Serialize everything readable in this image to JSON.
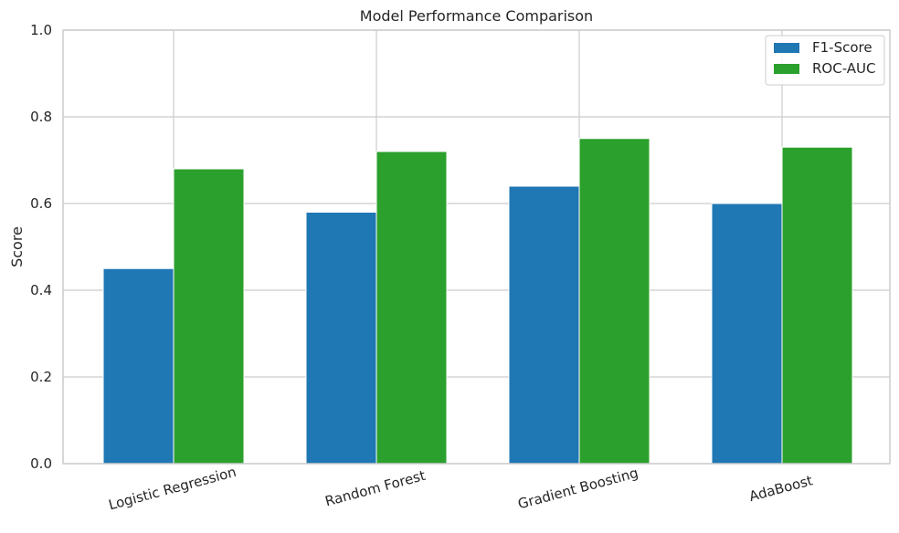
{
  "chart_data": {
    "type": "bar",
    "title": "Model Performance Comparison",
    "xlabel": "",
    "ylabel": "Score",
    "ylim": [
      0,
      1.0
    ],
    "yticks": [
      "0.0",
      "0.2",
      "0.4",
      "0.6",
      "0.8",
      "1.0"
    ],
    "categories": [
      "Logistic Regression",
      "Random Forest",
      "Gradient Boosting",
      "AdaBoost"
    ],
    "series": [
      {
        "name": "F1-Score",
        "values": [
          0.45,
          0.58,
          0.64,
          0.6
        ],
        "color": "#1f77b4"
      },
      {
        "name": "ROC-AUC",
        "values": [
          0.68,
          0.72,
          0.75,
          0.73
        ],
        "color": "#2ca02c"
      }
    ],
    "grid": true,
    "legend_position": "top-right",
    "xtick_rotation": "slanted"
  }
}
